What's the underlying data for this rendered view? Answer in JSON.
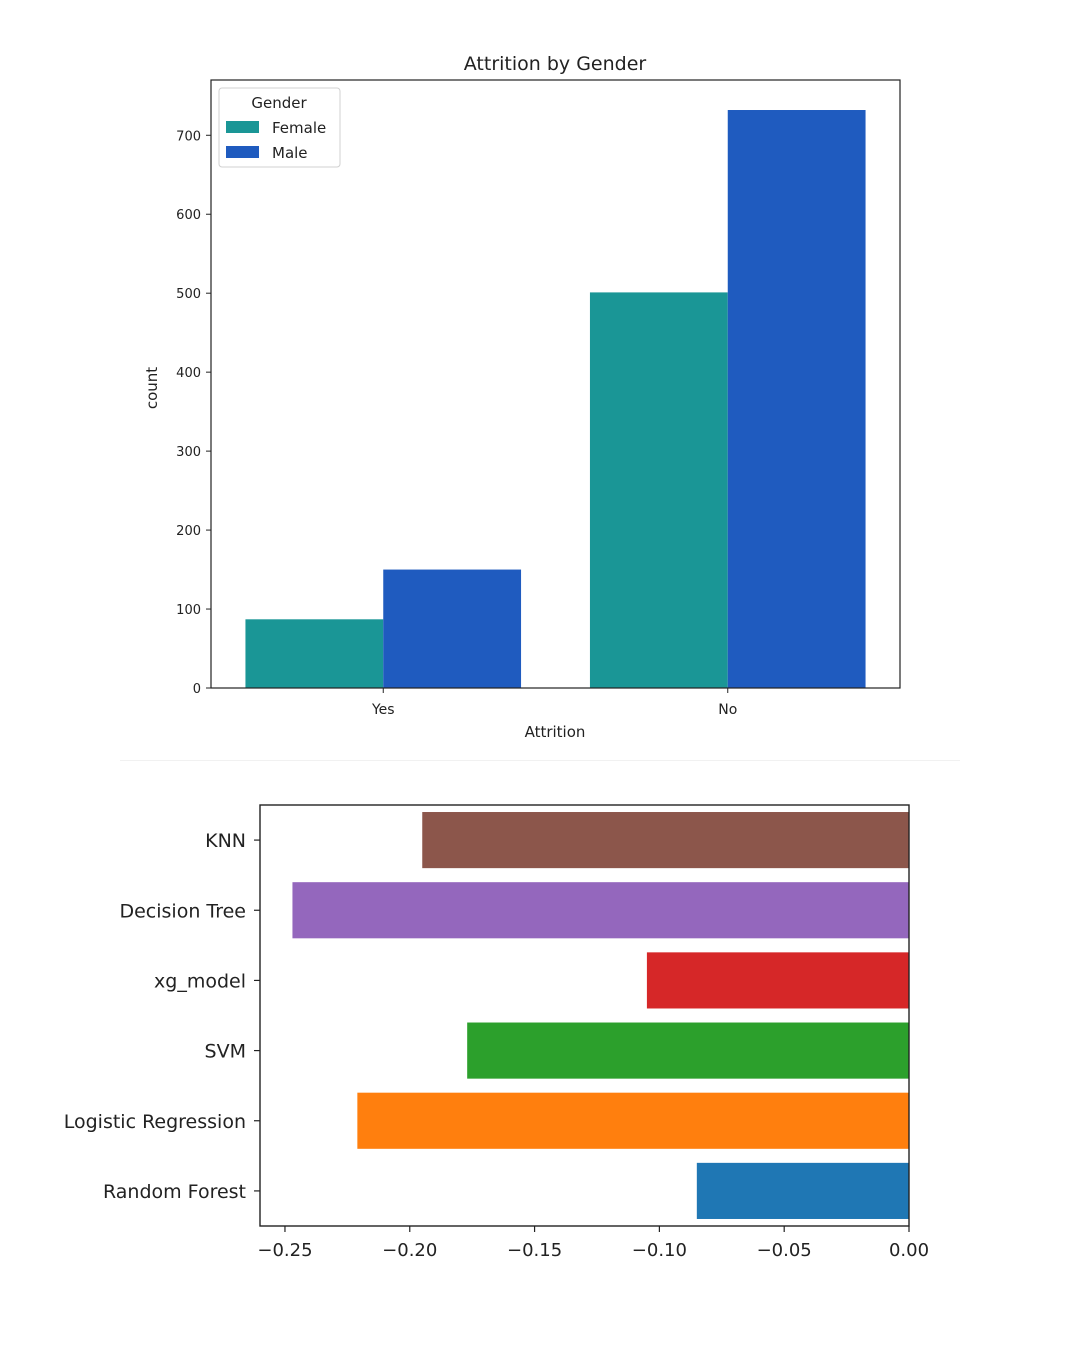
{
  "chart_data": [
    {
      "type": "bar",
      "title": "Attrition by Gender",
      "xlabel": "Attrition",
      "ylabel": "count",
      "categories": [
        "Yes",
        "No"
      ],
      "series": [
        {
          "name": "Female",
          "color": "#1a9696",
          "values": [
            87,
            501
          ]
        },
        {
          "name": "Male",
          "color": "#1f5bbf",
          "values": [
            150,
            732
          ]
        }
      ],
      "ylim": [
        0,
        770
      ],
      "yticks": [
        0,
        100,
        200,
        300,
        400,
        500,
        600,
        700
      ],
      "legend": {
        "title": "Gender",
        "placement": "top-left"
      },
      "grid": false
    },
    {
      "type": "barh",
      "title": "",
      "categories": [
        "KNN",
        "Decision Tree",
        "xg_model",
        "SVM",
        "Logistic Regression",
        "Random Forest"
      ],
      "values": [
        -0.195,
        -0.247,
        -0.105,
        -0.177,
        -0.221,
        -0.085
      ],
      "colors": [
        "#8c564b",
        "#9467bd",
        "#d62728",
        "#2ca02c",
        "#ff7f0e",
        "#1f77b4"
      ],
      "xlim": [
        -0.26,
        0.0
      ],
      "xticks": [
        -0.25,
        -0.2,
        -0.15,
        -0.1,
        -0.05,
        0.0
      ],
      "xtick_labels": [
        "−0.25",
        "−0.20",
        "−0.15",
        "−0.10",
        "−0.05",
        "0.00"
      ],
      "grid": false
    }
  ]
}
